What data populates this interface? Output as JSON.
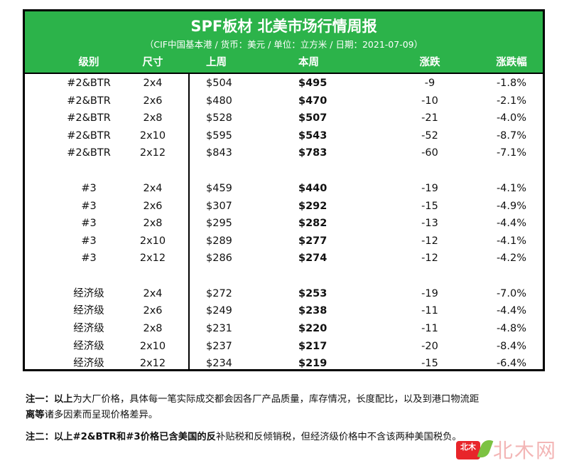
{
  "header": {
    "title": "SPF板材 北美市场行情周报",
    "subtitle": "（CIF中国基本港 / 货币：美元 / 单位：立方米 / 日期：2021-07-09）",
    "columns": [
      "级别",
      "尺寸",
      "上周",
      "本周",
      "涨跌",
      "涨跌幅"
    ]
  },
  "colors": {
    "header_bg": "#2cb34a",
    "header_text": "#ffffff",
    "border": "#000000"
  },
  "groups": [
    {
      "rows": [
        {
          "grade": "#2&BTR",
          "size": "2x4",
          "prev": "$504",
          "curr": "$495",
          "chg": "-9",
          "pct": "-1.8%"
        },
        {
          "grade": "#2&BTR",
          "size": "2x6",
          "prev": "$480",
          "curr": "$470",
          "chg": "-10",
          "pct": "-2.1%"
        },
        {
          "grade": "#2&BTR",
          "size": "2x8",
          "prev": "$528",
          "curr": "$507",
          "chg": "-21",
          "pct": "-4.0%"
        },
        {
          "grade": "#2&BTR",
          "size": "2x10",
          "prev": "$595",
          "curr": "$543",
          "chg": "-52",
          "pct": "-8.7%"
        },
        {
          "grade": "#2&BTR",
          "size": "2x12",
          "prev": "$843",
          "curr": "$783",
          "chg": "-60",
          "pct": "-7.1%"
        }
      ]
    },
    {
      "rows": [
        {
          "grade": "#3",
          "size": "2x4",
          "prev": "$459",
          "curr": "$440",
          "chg": "-19",
          "pct": "-4.1%"
        },
        {
          "grade": "#3",
          "size": "2x6",
          "prev": "$307",
          "curr": "$292",
          "chg": "-15",
          "pct": "-4.9%"
        },
        {
          "grade": "#3",
          "size": "2x8",
          "prev": "$295",
          "curr": "$282",
          "chg": "-13",
          "pct": "-4.4%"
        },
        {
          "grade": "#3",
          "size": "2x10",
          "prev": "$289",
          "curr": "$277",
          "chg": "-12",
          "pct": "-4.1%"
        },
        {
          "grade": "#3",
          "size": "2x12",
          "prev": "$286",
          "curr": "$274",
          "chg": "-12",
          "pct": "-4.2%"
        }
      ]
    },
    {
      "rows": [
        {
          "grade": "经济级",
          "size": "2x4",
          "prev": "$272",
          "curr": "$253",
          "chg": "-19",
          "pct": "-7.0%"
        },
        {
          "grade": "经济级",
          "size": "2x6",
          "prev": "$249",
          "curr": "$238",
          "chg": "-11",
          "pct": "-4.4%"
        },
        {
          "grade": "经济级",
          "size": "2x8",
          "prev": "$231",
          "curr": "$220",
          "chg": "-11",
          "pct": "-4.8%"
        },
        {
          "grade": "经济级",
          "size": "2x10",
          "prev": "$237",
          "curr": "$217",
          "chg": "-20",
          "pct": "-8.4%"
        },
        {
          "grade": "经济级",
          "size": "2x12",
          "prev": "$234",
          "curr": "$219",
          "chg": "-15",
          "pct": "-6.4%"
        }
      ]
    }
  ],
  "notes": {
    "note1_label": "注一：",
    "note1_bold": "以上",
    "note1_text": "为大厂价格，具体每一笔实际成交都会因各厂产品质量，库存情况，长度配比，以及到港口物流距",
    "note1_bold2": "离等",
    "note1_text2": "诸多因素而呈现价格差异。",
    "note2_label": "注二：",
    "note2_bold": "以上#2&BTR和#3价格已含美国的反",
    "note2_text": "补贴税和反倾销税，但经济级价格中不含该两种美国税负。"
  },
  "watermark": {
    "badge": "北木",
    "text": "北木网"
  }
}
